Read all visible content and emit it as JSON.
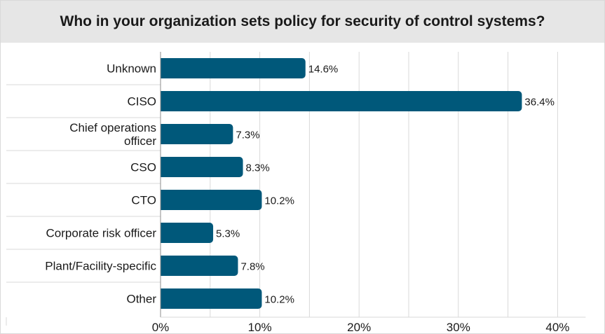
{
  "chart_data": {
    "type": "bar",
    "orientation": "horizontal",
    "title": "Who in your organization sets policy for security of control systems?",
    "categories": [
      "Unknown",
      "CISO",
      "Chief operations officer",
      "CSO",
      "CTO",
      "Corporate risk officer",
      "Plant/Facility-specific",
      "Other"
    ],
    "category_lines": [
      [
        "Unknown"
      ],
      [
        "CISO"
      ],
      [
        "Chief operations",
        "officer"
      ],
      [
        "CSO"
      ],
      [
        "CTO"
      ],
      [
        "Corporate risk officer"
      ],
      [
        "Plant/Facility-specific"
      ],
      [
        "Other"
      ]
    ],
    "values": [
      14.6,
      36.4,
      7.3,
      8.3,
      10.2,
      5.3,
      7.8,
      10.2
    ],
    "value_labels": [
      "14.6%",
      "36.4%",
      "7.3%",
      "8.3%",
      "10.2%",
      "5.3%",
      "7.8%",
      "10.2%"
    ],
    "xlim": [
      0,
      40
    ],
    "x_ticks": [
      0,
      10,
      20,
      30,
      40
    ],
    "x_tick_labels": [
      "0%",
      "10%",
      "20%",
      "30%",
      "40%"
    ],
    "xlabel": "",
    "ylabel": "",
    "grid": "vertical",
    "legend": "none",
    "colors": {
      "bar": "#00587a",
      "grid": "#d9d9d9",
      "title_bg": "#e6e6e6",
      "text": "#1a1a1a"
    }
  }
}
